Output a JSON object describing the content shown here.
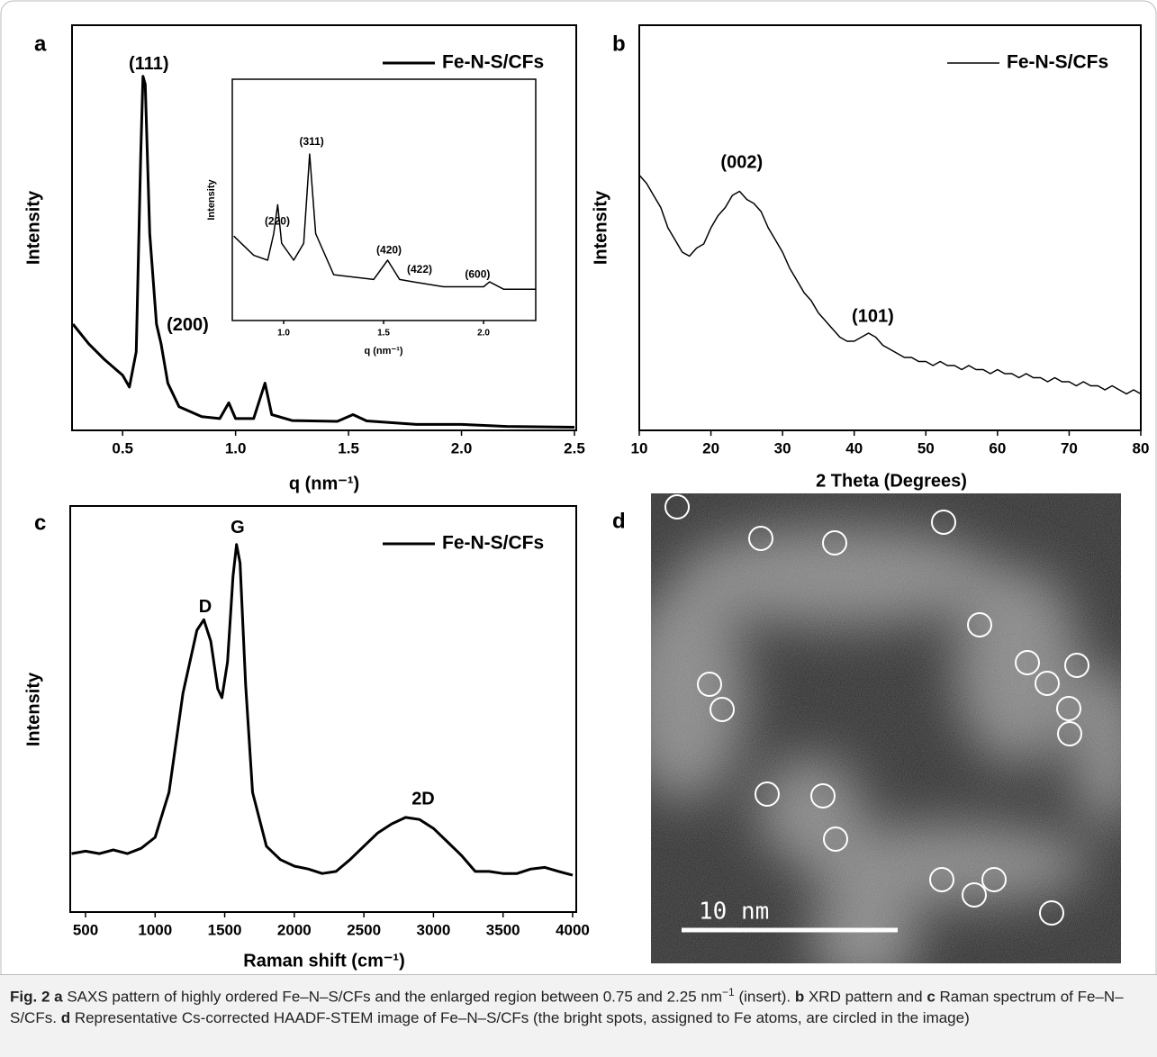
{
  "chart_data": [
    {
      "type": "line",
      "panel": "a",
      "xlabel": "q (nm⁻¹)",
      "ylabel": "Intensity",
      "x": [
        0.28,
        0.35,
        0.42,
        0.5,
        0.53,
        0.56,
        0.58,
        0.59,
        0.6,
        0.62,
        0.65,
        0.67,
        0.7,
        0.75,
        0.85,
        0.93,
        0.97,
        1.0,
        1.08,
        1.13,
        1.16,
        1.25,
        1.45,
        1.52,
        1.58,
        1.8,
        2.0,
        2.2,
        2.5
      ],
      "series": [
        {
          "name": "Fe-N-S/CFs",
          "color": "#000000",
          "values": [
            27,
            22,
            18,
            14,
            11,
            20,
            70,
            90,
            88,
            50,
            27,
            22,
            12,
            6,
            3.5,
            3,
            7,
            3,
            3,
            12,
            4,
            2.5,
            2.3,
            4,
            2.4,
            1.5,
            1.5,
            1,
            0.8
          ]
        }
      ],
      "xlim": [
        0.276,
        2.508
      ],
      "ylim": [
        0,
        103
      ],
      "xticks": [
        0.5,
        {
          "value": 1,
          "label": "1.0"
        },
        1.5,
        {
          "value": 2,
          "label": "2.0"
        },
        2.5
      ],
      "annotations": [
        {
          "text": "(111)",
          "x": 0.616,
          "y": 93
        },
        {
          "text": "(200)",
          "x": 0.788,
          "y": 26.6
        }
      ],
      "legend": "upper right",
      "line_width": 3
    },
    {
      "type": "line",
      "xlabel": "q (nm⁻¹)",
      "ylabel": "Intensity",
      "x": [
        0.75,
        0.85,
        0.92,
        0.95,
        0.97,
        0.99,
        1.05,
        1.1,
        1.13,
        1.16,
        1.25,
        1.45,
        1.52,
        1.58,
        1.65,
        1.8,
        2.0,
        2.03,
        2.1,
        2.26
      ],
      "series": [
        {
          "color": "#000000",
          "values": [
            35,
            27,
            25,
            36,
            48,
            32,
            25,
            32,
            69,
            36,
            19,
            17,
            25,
            17,
            16,
            14,
            14,
            16,
            13,
            13
          ]
        }
      ],
      "xlim": [
        0.743,
        2.261
      ],
      "ylim": [
        0,
        100
      ],
      "xticks": [
        {
          "value": 1,
          "label": "1.0"
        },
        1.5,
        {
          "value": 2,
          "label": "2.0"
        }
      ],
      "annotations": [
        {
          "text": "(220)",
          "x": 0.968,
          "y": 41
        },
        {
          "text": "(311)",
          "x": 1.14,
          "y": 74
        },
        {
          "text": "(420)",
          "x": 1.527,
          "y": 29
        },
        {
          "text": "(422)",
          "x": 1.68,
          "y": 21
        },
        {
          "text": "(600)",
          "x": 1.97,
          "y": 19
        }
      ],
      "line_width": 1.5
    },
    {
      "type": "line",
      "panel": "b",
      "xlabel": "2 Theta (Degrees)",
      "ylabel": "Intensity",
      "x": [
        10,
        11,
        12,
        13,
        14,
        15,
        16,
        17,
        18,
        19,
        20,
        21,
        22,
        23,
        24,
        25,
        26,
        27,
        28,
        29,
        30,
        31,
        32,
        33,
        34,
        35,
        36,
        37,
        38,
        39,
        40,
        41,
        42,
        43,
        44,
        45,
        46,
        47,
        48,
        49,
        50,
        51,
        52,
        53,
        54,
        55,
        56,
        57,
        58,
        59,
        60,
        61,
        62,
        63,
        64,
        65,
        66,
        67,
        68,
        69,
        70,
        71,
        72,
        73,
        74,
        75,
        76,
        77,
        78,
        79,
        80
      ],
      "series": [
        {
          "name": "Fe-N-S/CFs",
          "color": "#000000",
          "values": [
            63,
            61,
            58,
            55,
            50,
            47,
            44,
            43,
            45,
            46,
            50,
            53,
            55,
            58,
            59,
            57,
            56,
            54,
            50,
            47,
            44,
            40,
            37,
            34,
            32,
            29,
            27,
            25,
            23,
            22,
            22,
            23,
            24,
            23,
            21,
            20,
            19,
            18,
            18,
            17,
            17,
            16,
            17,
            16,
            16,
            15,
            16,
            15,
            15,
            14,
            15,
            14,
            14,
            13,
            14,
            13,
            13,
            12,
            13,
            12,
            12,
            11,
            12,
            11,
            11,
            10,
            11,
            10,
            9,
            10,
            9
          ]
        }
      ],
      "xlim": [
        10,
        80
      ],
      "ylim": [
        0,
        100
      ],
      "xticks": [
        10,
        20,
        30,
        40,
        50,
        60,
        70,
        80
      ],
      "annotations": [
        {
          "text": "(002)",
          "x": 24.3,
          "y": 66
        },
        {
          "text": "(101)",
          "x": 42.6,
          "y": 28
        }
      ],
      "legend": "upper right",
      "line_width": 1.5
    },
    {
      "type": "line",
      "panel": "c",
      "xlabel": "Raman shift (cm⁻¹)",
      "ylabel": "Intensity",
      "x": [
        400,
        500,
        600,
        700,
        800,
        900,
        1000,
        1100,
        1200,
        1300,
        1350,
        1400,
        1450,
        1480,
        1520,
        1560,
        1585,
        1610,
        1650,
        1700,
        1800,
        1900,
        2000,
        2100,
        2200,
        2300,
        2400,
        2500,
        2600,
        2700,
        2800,
        2900,
        3000,
        3100,
        3200,
        3300,
        3400,
        3500,
        3600,
        3700,
        3800,
        3900,
        4000
      ],
      "series": [
        {
          "name": "Fe-N-S/CFs",
          "color": "#000000",
          "values": [
            14.4,
            15,
            14.4,
            15.3,
            14.4,
            15.7,
            18.4,
            29.5,
            53.9,
            69.4,
            72,
            66.7,
            55,
            52.8,
            61.6,
            82.7,
            90.5,
            86,
            56,
            29.5,
            16.2,
            12.9,
            11.3,
            10.6,
            9.5,
            10,
            12.9,
            16.2,
            19.5,
            21.7,
            23.3,
            22.8,
            20.6,
            17.3,
            14,
            10,
            10,
            9.5,
            9.5,
            10.6,
            11,
            10,
            9.1
          ]
        }
      ],
      "xlim": [
        390,
        4026
      ],
      "ylim": [
        0,
        100
      ],
      "xticks": [
        500,
        1000,
        1500,
        2000,
        2500,
        3000,
        3500,
        4000
      ],
      "annotations": [
        {
          "text": "D",
          "x": 1360,
          "y": 75
        },
        {
          "text": "G",
          "x": 1593,
          "y": 94.5
        },
        {
          "text": "2D",
          "x": 2926,
          "y": 27.7
        }
      ],
      "legend": "upper right",
      "line_width": 3
    }
  ],
  "image": {
    "panel": "d",
    "scale_bar": "10 nm"
  },
  "caption": [
    {
      "text": "Fig. 2",
      "style": "bold"
    },
    {
      "text": "a",
      "style": "bold"
    },
    {
      "text": "SAXS pattern of highly ordered Fe–N–S/CFs and the enlarged region between 0.75 and 2.25 nm"
    },
    {
      "text": "−1",
      "style": "sup"
    },
    {
      "text": "(insert)."
    },
    {
      "text": "b",
      "style": "bold"
    },
    {
      "text": "XRD pattern and"
    },
    {
      "text": "c",
      "style": "bold"
    },
    {
      "text": "Raman spectrum of Fe–N–S/CFs."
    },
    {
      "text": "d",
      "style": "bold"
    },
    {
      "text": "Representative Cs-corrected HAADF-STEM image of Fe–N–S/CFs (the bright spots, assigned to Fe atoms, are circled in the image)"
    }
  ]
}
